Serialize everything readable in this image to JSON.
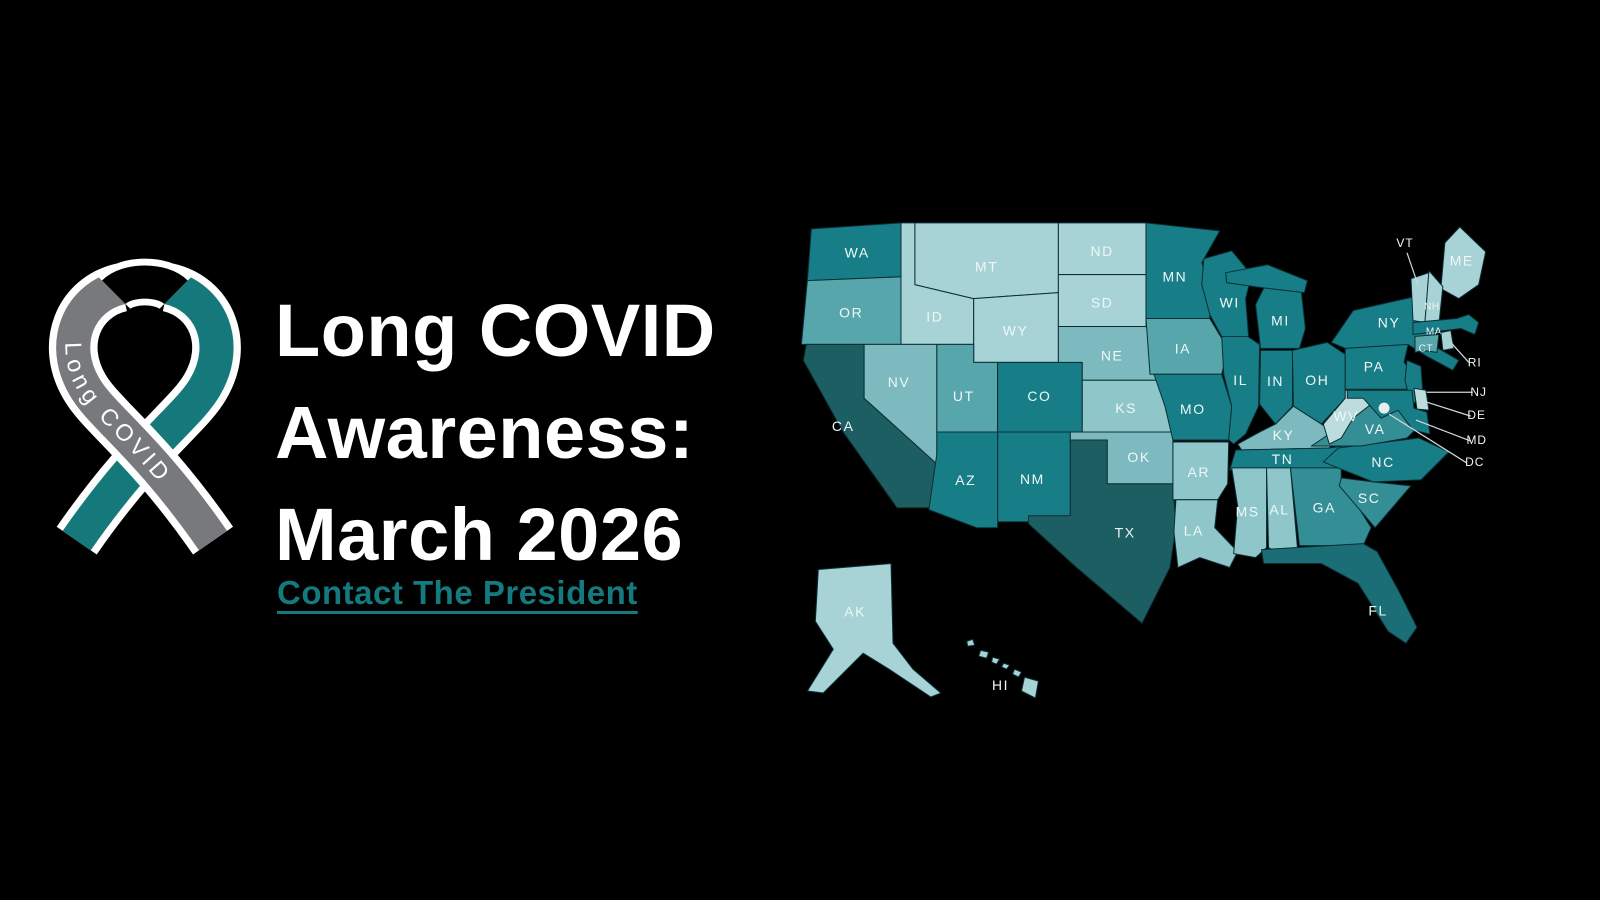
{
  "page": {
    "background": "#000000"
  },
  "ribbon": {
    "label": "Long COVID",
    "teal": "#15797c",
    "gray": "#77797c",
    "loop_top": "#000000",
    "outline": "#ffffff"
  },
  "headline": {
    "lines": [
      "Long COVID",
      "Awareness:",
      "March 2026"
    ],
    "color": "#ffffff"
  },
  "cta": {
    "label": "Contact The President",
    "color": "#147a7f"
  },
  "map": {
    "region": "United States choropleth",
    "label_color": "#f0f7f7",
    "border_color": "#0a2e33",
    "leader_color": "#cdd9d9",
    "dc_dot_color": "#e8ecec",
    "palette": {
      "p1": "#1d5e62",
      "p2": "#1b6e75",
      "p3": "#177e87",
      "p4": "#348e95",
      "p5": "#57a6ac",
      "p6": "#7cbabf",
      "p7": "#8fc6c9",
      "p8": "#a7d3d6",
      "p9": "#bcdcde"
    },
    "states": [
      {
        "abbr": "WA",
        "shade": "p3"
      },
      {
        "abbr": "OR",
        "shade": "p5"
      },
      {
        "abbr": "CA",
        "shade": "p1"
      },
      {
        "abbr": "ID",
        "shade": "p8"
      },
      {
        "abbr": "MT",
        "shade": "p8"
      },
      {
        "abbr": "WY",
        "shade": "p8"
      },
      {
        "abbr": "NV",
        "shade": "p6"
      },
      {
        "abbr": "UT",
        "shade": "p5"
      },
      {
        "abbr": "CO",
        "shade": "p3"
      },
      {
        "abbr": "NM",
        "shade": "p3"
      },
      {
        "abbr": "AZ",
        "shade": "p3"
      },
      {
        "abbr": "ND",
        "shade": "p8"
      },
      {
        "abbr": "SD",
        "shade": "p8"
      },
      {
        "abbr": "NE",
        "shade": "p6"
      },
      {
        "abbr": "KS",
        "shade": "p7"
      },
      {
        "abbr": "OK",
        "shade": "p6"
      },
      {
        "abbr": "TX",
        "shade": "p1"
      },
      {
        "abbr": "MN",
        "shade": "p3"
      },
      {
        "abbr": "IA",
        "shade": "p5"
      },
      {
        "abbr": "MO",
        "shade": "p3"
      },
      {
        "abbr": "AR",
        "shade": "p7"
      },
      {
        "abbr": "LA",
        "shade": "p7"
      },
      {
        "abbr": "WI",
        "shade": "p3"
      },
      {
        "abbr": "IL",
        "shade": "p3"
      },
      {
        "abbr": "IN",
        "shade": "p3"
      },
      {
        "abbr": "MI",
        "shade": "p3"
      },
      {
        "abbr": "OH",
        "shade": "p3"
      },
      {
        "abbr": "KY",
        "shade": "p6"
      },
      {
        "abbr": "TN",
        "shade": "p3"
      },
      {
        "abbr": "MS",
        "shade": "p7"
      },
      {
        "abbr": "AL",
        "shade": "p7"
      },
      {
        "abbr": "GA",
        "shade": "p4"
      },
      {
        "abbr": "FL",
        "shade": "p2"
      },
      {
        "abbr": "SC",
        "shade": "p4"
      },
      {
        "abbr": "NC",
        "shade": "p3"
      },
      {
        "abbr": "VA",
        "shade": "p4"
      },
      {
        "abbr": "WV",
        "shade": "p9"
      },
      {
        "abbr": "PA",
        "shade": "p3"
      },
      {
        "abbr": "NY",
        "shade": "p3"
      },
      {
        "abbr": "NJ",
        "shade": "p3"
      },
      {
        "abbr": "ME",
        "shade": "p8"
      },
      {
        "abbr": "VT",
        "shade": "p8"
      },
      {
        "abbr": "NH",
        "shade": "p8"
      },
      {
        "abbr": "MA",
        "shade": "p3"
      },
      {
        "abbr": "CT",
        "shade": "p5"
      },
      {
        "abbr": "RI",
        "shade": "p8"
      },
      {
        "abbr": "MD",
        "shade": "p3"
      },
      {
        "abbr": "DE",
        "shade": "p9"
      },
      {
        "abbr": "DC",
        "shade": "dot"
      },
      {
        "abbr": "AK",
        "shade": "p8"
      },
      {
        "abbr": "HI",
        "shade": "p8"
      }
    ]
  }
}
